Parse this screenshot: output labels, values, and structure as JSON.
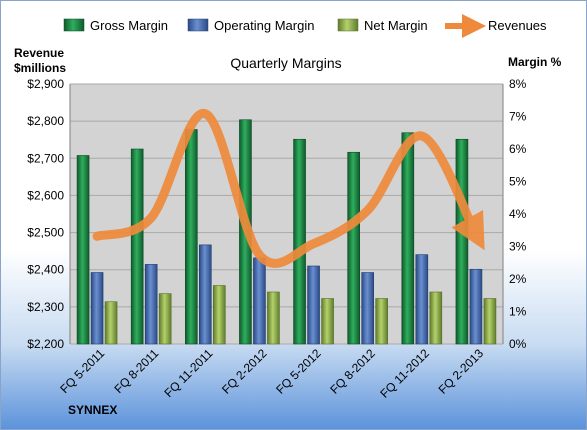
{
  "chart_data": {
    "type": "bar",
    "title": "Quarterly Margins",
    "categories": [
      "FQ 5-2011",
      "FQ 8-2011",
      "FQ 11-2011",
      "FQ 2-2012",
      "FQ 5-2012",
      "FQ 8-2012",
      "FQ 11-2012",
      "FQ 2-2013"
    ],
    "left_axis": {
      "label_line1": "Revenue",
      "label_line2": "$millions",
      "range": [
        2200,
        2900
      ],
      "ticks": [
        "$2,200",
        "$2,300",
        "$2,400",
        "$2,500",
        "$2,600",
        "$2,700",
        "$2,800",
        "$2,900"
      ]
    },
    "right_axis": {
      "label": "Margin %",
      "range": [
        0,
        8
      ],
      "ticks": [
        "0%",
        "1%",
        "2%",
        "3%",
        "4%",
        "5%",
        "6%",
        "7%",
        "8%"
      ]
    },
    "series": [
      {
        "name": "Gross Margin",
        "type": "bar",
        "axis": "right",
        "color": "#1e8a4a",
        "values": [
          5.8,
          6.0,
          6.6,
          6.9,
          6.3,
          5.9,
          6.5,
          6.3
        ]
      },
      {
        "name": "Operating Margin",
        "type": "bar",
        "axis": "right",
        "color": "#3f6bb5",
        "values": [
          2.2,
          2.45,
          3.05,
          2.65,
          2.4,
          2.2,
          2.75,
          2.3
        ]
      },
      {
        "name": "Net Margin",
        "type": "bar",
        "axis": "right",
        "color": "#8db14a",
        "values": [
          1.3,
          1.55,
          1.8,
          1.6,
          1.4,
          1.4,
          1.6,
          1.4
        ]
      },
      {
        "name": "Revenues",
        "type": "line",
        "axis": "left",
        "color": "#ef8a3c",
        "values": [
          2490,
          2540,
          2820,
          2440,
          2470,
          2560,
          2760,
          2495
        ]
      }
    ],
    "grid": true,
    "legend_position": "top"
  },
  "branding": {
    "company": "SYNNEX"
  },
  "colors": {
    "plot_bg": "#d3d3d3",
    "gridline": "#a9a9a9",
    "gross": "#1e8a4a",
    "operating": "#3f6bb5",
    "net": "#8db14a",
    "revenue": "#ef8a3c"
  }
}
